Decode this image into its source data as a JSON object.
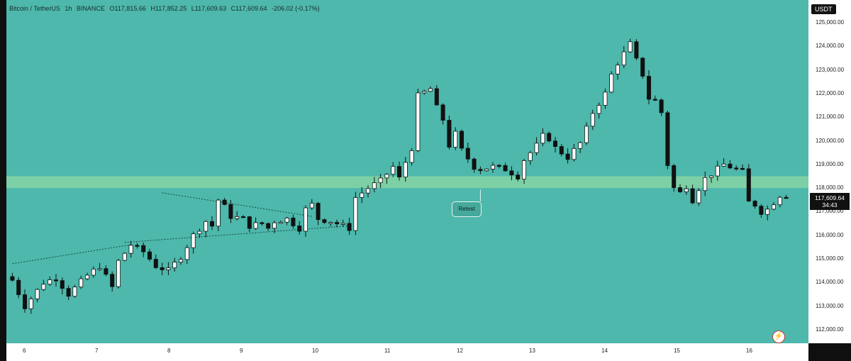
{
  "header": {
    "symbol": "Bitcoin / TetherUS",
    "interval": "1h",
    "exchange": "BINANCE",
    "open": "O117,815.66",
    "high": "H117,852.25",
    "low": "L117,609.63",
    "close": "C117,609.64",
    "change": "-206.02 (-0.17%)"
  },
  "currency": "USDT",
  "price_label": {
    "price": "117,609.64",
    "countdown": "34:43"
  },
  "annotation": {
    "text": "Retest"
  },
  "colors": {
    "background": "#4db8ab",
    "zone": "#8ed8a3",
    "up": "#ffffff",
    "down": "#111111"
  },
  "icons": {
    "alert": "lightning-icon"
  },
  "chart_data": {
    "type": "candlestick",
    "y_ticks": [
      "125,000.00",
      "124,000.00",
      "123,000.00",
      "122,000.00",
      "121,000.00",
      "120,000.00",
      "119,000.00",
      "118,000.00",
      "117,000.00",
      "116,000.00",
      "115,000.00",
      "114,000.00",
      "113,000.00",
      "112,000.00"
    ],
    "x_ticks": [
      "6",
      "7",
      "8",
      "9",
      "10",
      "11",
      "12",
      "13",
      "14",
      "15",
      "16"
    ],
    "ylim": [
      111500,
      125300
    ],
    "support_zone": [
      118000,
      118500
    ],
    "close_path": [
      [
        0,
        114100
      ],
      [
        2,
        113000
      ],
      [
        5,
        114000
      ],
      [
        7,
        114200
      ],
      [
        9,
        113500
      ],
      [
        12,
        114300
      ],
      [
        14,
        114700
      ],
      [
        16,
        113800
      ],
      [
        17,
        114900
      ],
      [
        19,
        115600
      ],
      [
        21,
        115300
      ],
      [
        23,
        114700
      ],
      [
        25,
        114500
      ],
      [
        27,
        115100
      ],
      [
        29,
        116000
      ],
      [
        31,
        116600
      ],
      [
        32,
        116400
      ],
      [
        33,
        117500
      ],
      [
        34,
        117200
      ],
      [
        35,
        116800
      ],
      [
        37,
        116700
      ],
      [
        38,
        116400
      ],
      [
        40,
        116500
      ],
      [
        41,
        116300
      ],
      [
        42,
        116600
      ],
      [
        44,
        116700
      ],
      [
        46,
        116300
      ],
      [
        47,
        117100
      ],
      [
        48,
        117300
      ],
      [
        49,
        116700
      ],
      [
        51,
        116600
      ],
      [
        53,
        116400
      ],
      [
        54,
        116300
      ],
      [
        55,
        117600
      ],
      [
        57,
        118000
      ],
      [
        59,
        118300
      ],
      [
        61,
        118900
      ],
      [
        62,
        118400
      ],
      [
        63,
        119100
      ],
      [
        64,
        119700
      ],
      [
        65,
        121900
      ],
      [
        67,
        122200
      ],
      [
        68,
        121400
      ],
      [
        69,
        120900
      ],
      [
        70,
        119800
      ],
      [
        71,
        120300
      ],
      [
        72,
        119600
      ],
      [
        74,
        118900
      ],
      [
        75,
        118800
      ],
      [
        77,
        118900
      ],
      [
        79,
        118800
      ],
      [
        81,
        118500
      ],
      [
        82,
        119200
      ],
      [
        84,
        119800
      ],
      [
        85,
        120200
      ],
      [
        86,
        120100
      ],
      [
        87,
        119700
      ],
      [
        88,
        119500
      ],
      [
        89,
        119300
      ],
      [
        90,
        119600
      ],
      [
        91,
        119900
      ],
      [
        92,
        120500
      ],
      [
        93,
        121200
      ],
      [
        94,
        121600
      ],
      [
        95,
        122000
      ],
      [
        96,
        122800
      ],
      [
        97,
        123300
      ],
      [
        98,
        123700
      ],
      [
        99,
        124100
      ],
      [
        100,
        123400
      ],
      [
        101,
        122800
      ],
      [
        102,
        121800
      ],
      [
        103,
        121700
      ],
      [
        104,
        121200
      ],
      [
        105,
        119000
      ],
      [
        106,
        118000
      ],
      [
        107,
        117800
      ],
      [
        108,
        118100
      ],
      [
        109,
        117500
      ],
      [
        110,
        118000
      ],
      [
        111,
        118400
      ],
      [
        113,
        118800
      ],
      [
        114,
        119000
      ],
      [
        116,
        118800
      ],
      [
        117,
        118700
      ],
      [
        118,
        117400
      ],
      [
        119,
        117300
      ],
      [
        120,
        117000
      ],
      [
        121,
        117100
      ],
      [
        122,
        117400
      ],
      [
        123,
        117700
      ],
      [
        124,
        117700
      ]
    ],
    "trendlines": [
      [
        [
          0,
          114800
        ],
        [
          19,
          115600
        ]
      ],
      [
        [
          18,
          115700
        ],
        [
          54,
          116400
        ]
      ],
      [
        [
          24,
          117800
        ],
        [
          48,
          116800
        ]
      ]
    ],
    "annotations": [
      {
        "text": "Retest",
        "at": [
          75,
          118000
        ]
      }
    ]
  }
}
